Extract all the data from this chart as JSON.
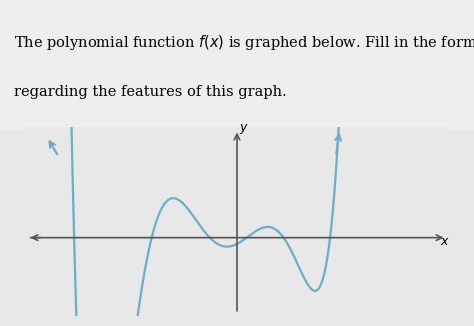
{
  "title_text1": "The polynomial function ",
  "title_text2": " is graphed below. Fill in the form below",
  "title_text3": "regarding the features of this graph.",
  "title_fontsize": 10.5,
  "curve_color": "#6aafc8",
  "axis_color": "#555555",
  "bg_color": "#e8e8e8",
  "text_bg_color": "#f0eeec",
  "xlim": [
    -5.5,
    5.5
  ],
  "ylim": [
    -3.2,
    4.5
  ],
  "figsize": [
    4.74,
    3.26
  ],
  "dpi": 100
}
